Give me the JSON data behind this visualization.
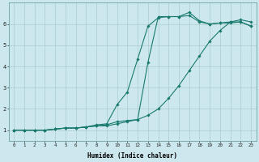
{
  "xlabel": "Humidex (Indice chaleur)",
  "ylabel": "",
  "bg_color": "#cce8ee",
  "grid_color": "#aacccc",
  "line_color": "#1a7a6e",
  "xlim": [
    -0.5,
    23.5
  ],
  "ylim": [
    0.5,
    7.0
  ],
  "xticks": [
    0,
    1,
    2,
    3,
    4,
    5,
    6,
    7,
    8,
    9,
    10,
    11,
    12,
    13,
    14,
    15,
    16,
    17,
    18,
    19,
    20,
    21,
    22,
    23
  ],
  "yticks": [
    1,
    2,
    3,
    4,
    5,
    6
  ],
  "line1_x": [
    0,
    1,
    2,
    3,
    4,
    5,
    6,
    7,
    8,
    9,
    10,
    11,
    12,
    13,
    14,
    15,
    16,
    17,
    18,
    19,
    20,
    21,
    22,
    23
  ],
  "line1_y": [
    1.0,
    1.0,
    1.0,
    1.0,
    1.05,
    1.1,
    1.1,
    1.15,
    1.2,
    1.2,
    1.3,
    1.4,
    1.5,
    1.7,
    2.0,
    2.5,
    3.1,
    3.8,
    4.5,
    5.2,
    5.7,
    6.1,
    6.2,
    6.1
  ],
  "line2_x": [
    0,
    1,
    2,
    3,
    4,
    5,
    6,
    7,
    8,
    9,
    10,
    11,
    12,
    13,
    14,
    15,
    16,
    17,
    18,
    19,
    20,
    21,
    22,
    23
  ],
  "line2_y": [
    1.0,
    1.0,
    1.0,
    1.0,
    1.05,
    1.1,
    1.1,
    1.15,
    1.2,
    1.25,
    1.4,
    1.45,
    1.5,
    4.2,
    6.35,
    6.35,
    6.35,
    6.4,
    6.1,
    6.0,
    6.05,
    6.1,
    6.1,
    5.9
  ],
  "line3_x": [
    0,
    1,
    2,
    3,
    4,
    5,
    6,
    7,
    8,
    9,
    10,
    11,
    12,
    13,
    14,
    15,
    16,
    17,
    18,
    19,
    20,
    21,
    22,
    23
  ],
  "line3_y": [
    1.0,
    1.0,
    1.0,
    1.0,
    1.05,
    1.1,
    1.1,
    1.15,
    1.25,
    1.3,
    2.2,
    2.8,
    4.35,
    5.9,
    6.3,
    6.35,
    6.35,
    6.55,
    6.15,
    6.0,
    6.05,
    6.05,
    6.1,
    5.9
  ]
}
